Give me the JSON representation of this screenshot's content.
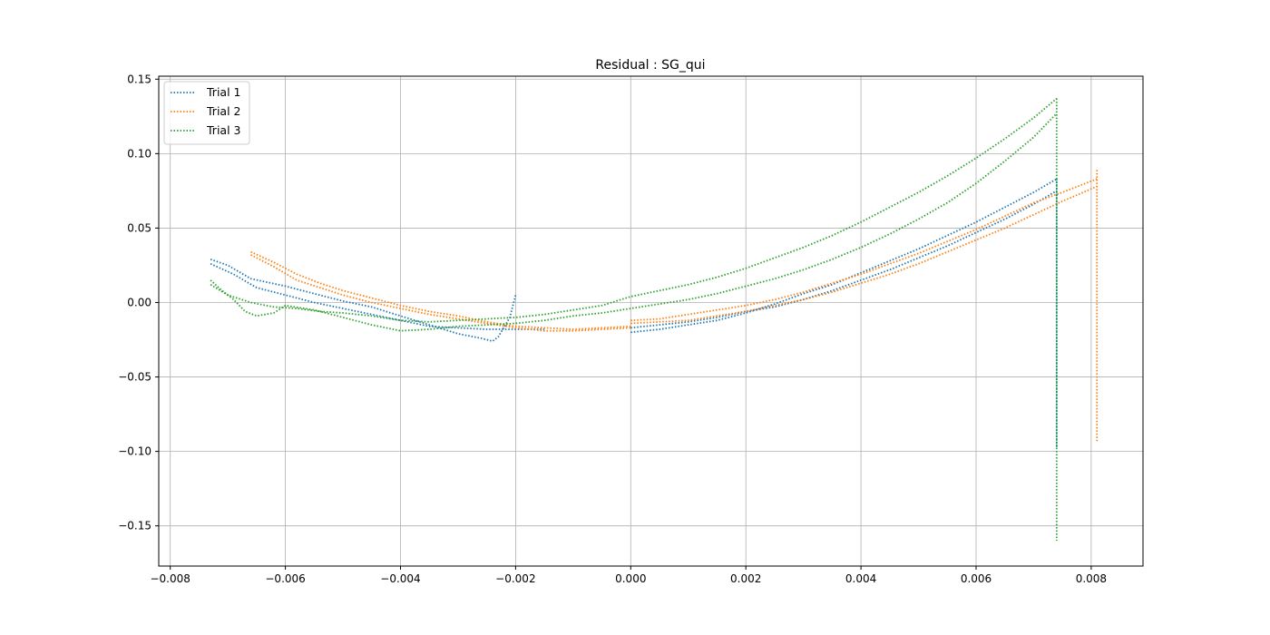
{
  "chart_data": {
    "type": "line",
    "title": "Residual : SG_qui",
    "xlabel": "",
    "ylabel": "",
    "xlim": [
      -0.0082,
      0.0089
    ],
    "ylim": [
      -0.177,
      0.152
    ],
    "grid": true,
    "legend_position": "top-left",
    "line_style": "dotted",
    "x_ticks": [
      -0.008,
      -0.006,
      -0.004,
      -0.002,
      0.0,
      0.002,
      0.004,
      0.006,
      0.008
    ],
    "x_tick_labels": [
      "−0.008",
      "−0.006",
      "−0.004",
      "−0.002",
      "0.000",
      "0.002",
      "0.004",
      "0.006",
      "0.008"
    ],
    "y_ticks": [
      -0.15,
      -0.1,
      -0.05,
      0.0,
      0.05,
      0.1,
      0.15
    ],
    "y_tick_labels": [
      "−0.15",
      "−0.10",
      "−0.05",
      "0.00",
      "0.05",
      "0.10",
      "0.15"
    ],
    "series": [
      {
        "name": "Trial 1",
        "color": "#1f77b4",
        "segments": [
          [
            [
              -0.0073,
              0.029
            ],
            [
              -0.007,
              0.025
            ],
            [
              -0.0066,
              0.016
            ],
            [
              -0.006,
              0.011
            ],
            [
              -0.0055,
              0.006
            ],
            [
              -0.005,
              0.001
            ],
            [
              -0.0045,
              -0.003
            ],
            [
              -0.004,
              -0.009
            ],
            [
              -0.0035,
              -0.015
            ],
            [
              -0.003,
              -0.021
            ],
            [
              -0.0026,
              -0.024
            ],
            [
              -0.0024,
              -0.026
            ],
            [
              -0.0023,
              -0.023
            ],
            [
              -0.0021,
              -0.01
            ],
            [
              -0.002,
              0.005
            ]
          ],
          [
            [
              -0.0073,
              0.026
            ],
            [
              -0.0069,
              0.019
            ],
            [
              -0.0065,
              0.01
            ],
            [
              -0.006,
              0.005
            ],
            [
              -0.0055,
              0.0
            ],
            [
              -0.005,
              -0.004
            ],
            [
              -0.0045,
              -0.008
            ],
            [
              -0.004,
              -0.012
            ],
            [
              -0.0035,
              -0.016
            ],
            [
              -0.003,
              -0.017
            ],
            [
              -0.0025,
              -0.018
            ],
            [
              -0.002,
              -0.018
            ],
            [
              -0.0015,
              -0.018
            ]
          ],
          [
            [
              0.0,
              -0.02
            ],
            [
              0.0005,
              -0.018
            ],
            [
              0.001,
              -0.015
            ],
            [
              0.0015,
              -0.012
            ],
            [
              0.002,
              -0.007
            ],
            [
              0.0025,
              -0.001
            ],
            [
              0.003,
              0.006
            ],
            [
              0.0035,
              0.012
            ],
            [
              0.004,
              0.02
            ],
            [
              0.0045,
              0.028
            ],
            [
              0.005,
              0.036
            ],
            [
              0.0055,
              0.045
            ],
            [
              0.006,
              0.054
            ],
            [
              0.0065,
              0.064
            ],
            [
              0.007,
              0.074
            ],
            [
              0.0074,
              0.083
            ]
          ],
          [
            [
              0.0,
              -0.017
            ],
            [
              0.0005,
              -0.015
            ],
            [
              0.001,
              -0.013
            ],
            [
              0.0015,
              -0.01
            ],
            [
              0.002,
              -0.006
            ],
            [
              0.0025,
              -0.003
            ],
            [
              0.003,
              0.002
            ],
            [
              0.0035,
              0.008
            ],
            [
              0.004,
              0.015
            ],
            [
              0.0045,
              0.022
            ],
            [
              0.005,
              0.03
            ],
            [
              0.0055,
              0.038
            ],
            [
              0.006,
              0.047
            ],
            [
              0.0065,
              0.056
            ],
            [
              0.007,
              0.066
            ],
            [
              0.0074,
              0.075
            ]
          ],
          [
            [
              0.0074,
              0.083
            ],
            [
              0.0074,
              -0.098
            ]
          ]
        ]
      },
      {
        "name": "Trial 2",
        "color": "#ff7f0e",
        "segments": [
          [
            [
              -0.0066,
              0.034
            ],
            [
              -0.0062,
              0.027
            ],
            [
              -0.0058,
              0.019
            ],
            [
              -0.0054,
              0.013
            ],
            [
              -0.005,
              0.008
            ],
            [
              -0.0045,
              0.003
            ],
            [
              -0.004,
              -0.002
            ],
            [
              -0.0035,
              -0.006
            ],
            [
              -0.003,
              -0.009
            ],
            [
              -0.0025,
              -0.013
            ],
            [
              -0.002,
              -0.016
            ],
            [
              -0.0015,
              -0.017
            ],
            [
              -0.001,
              -0.018
            ],
            [
              -0.0005,
              -0.017
            ],
            [
              0.0,
              -0.016
            ]
          ],
          [
            [
              -0.0066,
              0.032
            ],
            [
              -0.0062,
              0.024
            ],
            [
              -0.0058,
              0.015
            ],
            [
              -0.0054,
              0.01
            ],
            [
              -0.005,
              0.005
            ],
            [
              -0.0045,
              0.0
            ],
            [
              -0.004,
              -0.004
            ],
            [
              -0.0035,
              -0.008
            ],
            [
              -0.003,
              -0.011
            ],
            [
              -0.0025,
              -0.014
            ],
            [
              -0.002,
              -0.017
            ],
            [
              -0.0015,
              -0.019
            ],
            [
              -0.001,
              -0.019
            ],
            [
              -0.0005,
              -0.018
            ],
            [
              0.0,
              -0.017
            ]
          ],
          [
            [
              0.0,
              -0.012
            ],
            [
              0.0005,
              -0.011
            ],
            [
              0.001,
              -0.008
            ],
            [
              0.0015,
              -0.005
            ],
            [
              0.002,
              -0.002
            ],
            [
              0.0025,
              0.002
            ],
            [
              0.003,
              0.007
            ],
            [
              0.0035,
              0.013
            ],
            [
              0.004,
              0.019
            ],
            [
              0.0045,
              0.026
            ],
            [
              0.005,
              0.033
            ],
            [
              0.0055,
              0.041
            ],
            [
              0.006,
              0.049
            ],
            [
              0.0065,
              0.058
            ],
            [
              0.007,
              0.067
            ],
            [
              0.0075,
              0.074
            ],
            [
              0.0081,
              0.083
            ]
          ],
          [
            [
              0.0,
              -0.014
            ],
            [
              0.0005,
              -0.013
            ],
            [
              0.001,
              -0.012
            ],
            [
              0.0015,
              -0.009
            ],
            [
              0.002,
              -0.006
            ],
            [
              0.0025,
              -0.002
            ],
            [
              0.003,
              0.002
            ],
            [
              0.0035,
              0.007
            ],
            [
              0.004,
              0.013
            ],
            [
              0.0045,
              0.019
            ],
            [
              0.005,
              0.026
            ],
            [
              0.0055,
              0.034
            ],
            [
              0.006,
              0.042
            ],
            [
              0.0065,
              0.05
            ],
            [
              0.007,
              0.059
            ],
            [
              0.0075,
              0.068
            ],
            [
              0.0081,
              0.078
            ]
          ],
          [
            [
              0.0081,
              0.089
            ],
            [
              0.0081,
              -0.093
            ]
          ]
        ]
      },
      {
        "name": "Trial 3",
        "color": "#2ca02c",
        "segments": [
          [
            [
              -0.0073,
              0.015
            ],
            [
              -0.0071,
              0.008
            ],
            [
              -0.0069,
              0.002
            ],
            [
              -0.0067,
              -0.006
            ],
            [
              -0.0065,
              -0.009
            ],
            [
              -0.0062,
              -0.007
            ],
            [
              -0.006,
              -0.002
            ],
            [
              -0.0055,
              -0.005
            ],
            [
              -0.005,
              -0.01
            ],
            [
              -0.0045,
              -0.015
            ],
            [
              -0.004,
              -0.019
            ],
            [
              -0.0035,
              -0.018
            ],
            [
              -0.003,
              -0.016
            ],
            [
              -0.0025,
              -0.015
            ],
            [
              -0.002,
              -0.014
            ],
            [
              -0.0015,
              -0.012
            ],
            [
              -0.001,
              -0.009
            ],
            [
              -0.0005,
              -0.007
            ],
            [
              0.0,
              -0.004
            ],
            [
              0.0005,
              -0.001
            ],
            [
              0.001,
              0.002
            ],
            [
              0.0015,
              0.006
            ],
            [
              0.002,
              0.011
            ],
            [
              0.0025,
              0.016
            ],
            [
              0.003,
              0.022
            ],
            [
              0.0035,
              0.029
            ],
            [
              0.004,
              0.037
            ],
            [
              0.0045,
              0.046
            ],
            [
              0.005,
              0.056
            ],
            [
              0.0055,
              0.067
            ],
            [
              0.006,
              0.08
            ],
            [
              0.0065,
              0.095
            ],
            [
              0.007,
              0.111
            ],
            [
              0.0074,
              0.127
            ]
          ],
          [
            [
              -0.0073,
              0.012
            ],
            [
              -0.007,
              0.005
            ],
            [
              -0.0066,
              0.0
            ],
            [
              -0.0062,
              -0.003
            ],
            [
              -0.0058,
              -0.004
            ],
            [
              -0.0054,
              -0.006
            ],
            [
              -0.005,
              -0.007
            ],
            [
              -0.0045,
              -0.009
            ],
            [
              -0.004,
              -0.012
            ],
            [
              -0.0035,
              -0.013
            ],
            [
              -0.003,
              -0.012
            ],
            [
              -0.0025,
              -0.011
            ],
            [
              -0.002,
              -0.01
            ],
            [
              -0.0015,
              -0.008
            ],
            [
              -0.001,
              -0.005
            ],
            [
              -0.0005,
              -0.002
            ],
            [
              0.0,
              0.004
            ],
            [
              0.0005,
              0.008
            ],
            [
              0.001,
              0.012
            ],
            [
              0.0015,
              0.017
            ],
            [
              0.002,
              0.023
            ],
            [
              0.0025,
              0.03
            ],
            [
              0.003,
              0.037
            ],
            [
              0.0035,
              0.045
            ],
            [
              0.004,
              0.054
            ],
            [
              0.0045,
              0.064
            ],
            [
              0.005,
              0.074
            ],
            [
              0.0055,
              0.085
            ],
            [
              0.006,
              0.097
            ],
            [
              0.0065,
              0.11
            ],
            [
              0.007,
              0.124
            ],
            [
              0.0074,
              0.137
            ]
          ],
          [
            [
              0.0074,
              0.137
            ],
            [
              0.0074,
              -0.16
            ]
          ]
        ]
      }
    ]
  }
}
